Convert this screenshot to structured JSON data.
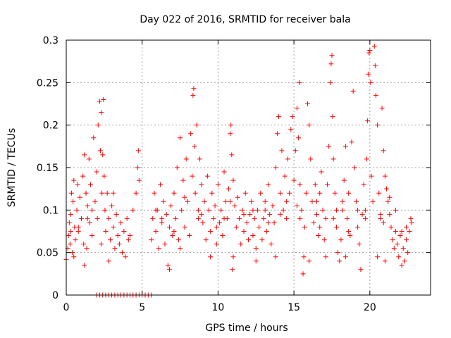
{
  "chart_data": {
    "type": "scatter",
    "title": "Day 022 of 2016, SRMTID for receiver bala",
    "xlabel": "GPS time / hours",
    "ylabel": "SRMTID / TECUs",
    "xlim": [
      0,
      24
    ],
    "ylim": [
      0,
      0.3
    ],
    "grid": true,
    "legend": "none",
    "marker": "plus",
    "color": "#ff0000",
    "x_ticks": [
      0,
      5,
      10,
      15,
      20
    ],
    "x_tick_labels": [
      "0",
      "5",
      "10",
      "15",
      "20"
    ],
    "y_ticks": [
      0,
      0.05,
      0.1,
      0.15,
      0.2,
      0.25,
      0.3
    ],
    "y_tick_labels": [
      "0",
      "0.05",
      "0.1",
      "0.15",
      "0.2",
      "0.25",
      "0.3"
    ],
    "series": [
      {
        "name": "SRMTID",
        "points": [
          [
            0.0,
            0.042
          ],
          [
            0.1,
            0.055
          ],
          [
            0.15,
            0.07
          ],
          [
            0.2,
            0.085
          ],
          [
            0.25,
            0.06
          ],
          [
            0.3,
            0.095
          ],
          [
            0.35,
            0.12
          ],
          [
            0.4,
            0.05
          ],
          [
            0.45,
            0.11
          ],
          [
            0.5,
            0.135
          ],
          [
            0.55,
            0.08
          ],
          [
            0.6,
            0.065
          ],
          [
            0.7,
            0.1
          ],
          [
            0.75,
            0.13
          ],
          [
            0.8,
            0.075
          ],
          [
            0.9,
            0.115
          ],
          [
            1.0,
            0.09
          ],
          [
            1.1,
            0.14
          ],
          [
            1.15,
            0.06
          ],
          [
            1.2,
            0.165
          ],
          [
            1.3,
            0.12
          ],
          [
            1.35,
            0.055
          ],
          [
            1.4,
            0.105
          ],
          [
            1.5,
            0.16
          ],
          [
            1.55,
            0.085
          ],
          [
            1.6,
            0.13
          ],
          [
            1.7,
            0.07
          ],
          [
            1.8,
            0.185
          ],
          [
            1.9,
            0.11
          ],
          [
            2.0,
            0.145
          ],
          [
            2.05,
            0.09
          ],
          [
            2.1,
            0.2
          ],
          [
            2.2,
            0.228
          ],
          [
            2.25,
            0.17
          ],
          [
            2.3,
            0.215
          ],
          [
            2.35,
            0.12
          ],
          [
            2.4,
            0.165
          ],
          [
            2.45,
            0.23
          ],
          [
            2.5,
            0.14
          ],
          [
            2.55,
            0.1
          ],
          [
            2.6,
            0.075
          ],
          [
            2.7,
            0.12
          ],
          [
            2.8,
            0.09
          ],
          [
            2.9,
            0.065
          ],
          [
            3.0,
            0.105
          ],
          [
            3.1,
            0.08
          ],
          [
            3.2,
            0.055
          ],
          [
            3.3,
            0.095
          ],
          [
            3.4,
            0.07
          ],
          [
            3.5,
            0.06
          ],
          [
            3.6,
            0.085
          ],
          [
            3.7,
            0.05
          ],
          [
            3.8,
            0.075
          ],
          [
            4.0,
            0.09
          ],
          [
            4.2,
            0.07
          ],
          [
            4.4,
            0.1
          ],
          [
            4.6,
            0.12
          ],
          [
            4.7,
            0.15
          ],
          [
            4.75,
            0.17
          ],
          [
            4.8,
            0.135
          ],
          [
            2.0,
            0.0
          ],
          [
            2.2,
            0.0
          ],
          [
            2.4,
            0.0
          ],
          [
            2.6,
            0.0
          ],
          [
            2.8,
            0.0
          ],
          [
            3.0,
            0.0
          ],
          [
            3.2,
            0.0
          ],
          [
            3.4,
            0.0
          ],
          [
            3.6,
            0.0
          ],
          [
            3.8,
            0.0
          ],
          [
            4.0,
            0.0
          ],
          [
            4.2,
            0.0
          ],
          [
            4.4,
            0.0
          ],
          [
            4.6,
            0.0
          ],
          [
            4.8,
            0.0
          ],
          [
            5.0,
            0.0
          ],
          [
            5.2,
            0.0
          ],
          [
            5.4,
            0.0
          ],
          [
            5.6,
            0.0
          ],
          [
            5.6,
            0.065
          ],
          [
            5.7,
            0.09
          ],
          [
            5.8,
            0.12
          ],
          [
            5.9,
            0.075
          ],
          [
            6.0,
            0.1
          ],
          [
            6.1,
            0.055
          ],
          [
            6.2,
            0.13
          ],
          [
            6.3,
            0.085
          ],
          [
            6.4,
            0.11
          ],
          [
            6.5,
            0.06
          ],
          [
            6.6,
            0.095
          ],
          [
            6.7,
            0.035
          ],
          [
            6.8,
            0.08
          ],
          [
            6.9,
            0.105
          ],
          [
            7.0,
            0.07
          ],
          [
            7.1,
            0.12
          ],
          [
            7.2,
            0.09
          ],
          [
            7.3,
            0.15
          ],
          [
            7.4,
            0.065
          ],
          [
            7.5,
            0.185
          ],
          [
            7.6,
            0.1
          ],
          [
            7.7,
            0.135
          ],
          [
            7.8,
            0.08
          ],
          [
            7.9,
            0.16
          ],
          [
            8.0,
            0.11
          ],
          [
            8.1,
            0.07
          ],
          [
            8.2,
            0.19
          ],
          [
            8.3,
            0.14
          ],
          [
            8.35,
            0.235
          ],
          [
            8.4,
            0.243
          ],
          [
            8.45,
            0.175
          ],
          [
            8.5,
            0.12
          ],
          [
            8.6,
            0.2
          ],
          [
            8.7,
            0.09
          ],
          [
            8.8,
            0.16
          ],
          [
            8.9,
            0.13
          ],
          [
            9.0,
            0.085
          ],
          [
            9.1,
            0.11
          ],
          [
            9.2,
            0.065
          ],
          [
            9.3,
            0.14
          ],
          [
            9.4,
            0.1
          ],
          [
            9.5,
            0.075
          ],
          [
            9.6,
            0.12
          ],
          [
            9.7,
            0.09
          ],
          [
            9.8,
            0.105
          ],
          [
            9.9,
            0.06
          ],
          [
            10.0,
            0.13
          ],
          [
            10.1,
            0.085
          ],
          [
            10.2,
            0.1
          ],
          [
            10.3,
            0.07
          ],
          [
            10.4,
            0.145
          ],
          [
            10.5,
            0.11
          ],
          [
            10.6,
            0.09
          ],
          [
            10.7,
            0.125
          ],
          [
            10.8,
            0.19
          ],
          [
            10.85,
            0.2
          ],
          [
            10.9,
            0.165
          ],
          [
            10.95,
            0.03
          ],
          [
            11.0,
            0.135
          ],
          [
            11.1,
            0.105
          ],
          [
            11.2,
            0.08
          ],
          [
            11.3,
            0.115
          ],
          [
            11.4,
            0.09
          ],
          [
            11.5,
            0.06
          ],
          [
            11.6,
            0.1
          ],
          [
            11.7,
            0.075
          ],
          [
            11.8,
            0.12
          ],
          [
            11.9,
            0.085
          ],
          [
            12.0,
            0.065
          ],
          [
            12.1,
            0.095
          ],
          [
            12.2,
            0.11
          ],
          [
            12.3,
            0.07
          ],
          [
            12.4,
            0.09
          ],
          [
            12.5,
            0.055
          ],
          [
            12.6,
            0.1
          ],
          [
            12.7,
            0.08
          ],
          [
            12.8,
            0.12
          ],
          [
            12.9,
            0.065
          ],
          [
            13.0,
            0.09
          ],
          [
            13.1,
            0.11
          ],
          [
            13.2,
            0.075
          ],
          [
            13.3,
            0.13
          ],
          [
            13.4,
            0.095
          ],
          [
            13.5,
            0.06
          ],
          [
            13.6,
            0.105
          ],
          [
            13.7,
            0.085
          ],
          [
            13.8,
            0.15
          ],
          [
            13.9,
            0.19
          ],
          [
            14.0,
            0.21
          ],
          [
            14.1,
            0.12
          ],
          [
            14.2,
            0.17
          ],
          [
            14.3,
            0.1
          ],
          [
            14.4,
            0.14
          ],
          [
            14.5,
            0.09
          ],
          [
            14.6,
            0.16
          ],
          [
            14.7,
            0.12
          ],
          [
            14.8,
            0.195
          ],
          [
            14.9,
            0.21
          ],
          [
            15.0,
            0.135
          ],
          [
            15.1,
            0.17
          ],
          [
            15.2,
            0.22
          ],
          [
            15.3,
            0.185
          ],
          [
            15.35,
            0.25
          ],
          [
            15.4,
            0.13
          ],
          [
            15.5,
            0.1
          ],
          [
            15.6,
            0.025
          ],
          [
            15.65,
            0.045
          ],
          [
            15.7,
            0.08
          ],
          [
            15.8,
            0.12
          ],
          [
            15.9,
            0.225
          ],
          [
            16.0,
            0.2
          ],
          [
            16.1,
            0.16
          ],
          [
            16.2,
            0.11
          ],
          [
            16.3,
            0.085
          ],
          [
            16.4,
            0.13
          ],
          [
            16.5,
            0.095
          ],
          [
            16.6,
            0.07
          ],
          [
            16.7,
            0.12
          ],
          [
            16.8,
            0.145
          ],
          [
            16.9,
            0.1
          ],
          [
            17.0,
            0.065
          ],
          [
            17.1,
            0.09
          ],
          [
            17.2,
            0.13
          ],
          [
            17.3,
            0.175
          ],
          [
            17.4,
            0.25
          ],
          [
            17.45,
            0.272
          ],
          [
            17.5,
            0.282
          ],
          [
            17.55,
            0.21
          ],
          [
            17.6,
            0.16
          ],
          [
            17.7,
            0.12
          ],
          [
            17.8,
            0.08
          ],
          [
            17.9,
            0.05
          ],
          [
            18.0,
            0.04
          ],
          [
            18.1,
            0.065
          ],
          [
            18.2,
            0.1
          ],
          [
            18.3,
            0.135
          ],
          [
            18.4,
            0.175
          ],
          [
            18.5,
            0.09
          ],
          [
            18.6,
            0.12
          ],
          [
            18.7,
            0.07
          ],
          [
            18.8,
            0.18
          ],
          [
            18.9,
            0.24
          ],
          [
            19.0,
            0.15
          ],
          [
            19.1,
            0.11
          ],
          [
            19.2,
            0.08
          ],
          [
            19.3,
            0.06
          ],
          [
            19.4,
            0.03
          ],
          [
            19.5,
            0.095
          ],
          [
            19.6,
            0.13
          ],
          [
            19.7,
            0.1
          ],
          [
            19.8,
            0.16
          ],
          [
            19.85,
            0.205
          ],
          [
            19.9,
            0.26
          ],
          [
            19.95,
            0.285
          ],
          [
            20.0,
            0.288
          ],
          [
            20.05,
            0.25
          ],
          [
            20.1,
            0.14
          ],
          [
            20.2,
            0.11
          ],
          [
            20.3,
            0.293
          ],
          [
            20.35,
            0.27
          ],
          [
            20.4,
            0.235
          ],
          [
            20.5,
            0.2
          ],
          [
            20.6,
            0.12
          ],
          [
            20.7,
            0.09
          ],
          [
            20.8,
            0.22
          ],
          [
            20.9,
            0.17
          ],
          [
            21.0,
            0.14
          ],
          [
            21.1,
            0.125
          ],
          [
            21.2,
            0.11
          ],
          [
            21.3,
            0.095
          ],
          [
            21.4,
            0.08
          ],
          [
            21.5,
            0.065
          ],
          [
            21.6,
            0.055
          ],
          [
            21.7,
            0.075
          ],
          [
            21.8,
            0.06
          ],
          [
            21.9,
            0.045
          ],
          [
            22.0,
            0.07
          ],
          [
            22.1,
            0.035
          ],
          [
            22.2,
            0.055
          ],
          [
            22.3,
            0.04
          ],
          [
            22.4,
            0.065
          ],
          [
            22.5,
            0.05
          ],
          [
            22.6,
            0.075
          ],
          [
            22.7,
            0.09
          ],
          [
            22.75,
            0.085
          ],
          [
            0.5,
            0.045
          ],
          [
            1.2,
            0.035
          ],
          [
            2.8,
            0.04
          ],
          [
            3.9,
            0.045
          ],
          [
            6.8,
            0.03
          ],
          [
            7.5,
            0.055
          ],
          [
            9.5,
            0.045
          ],
          [
            11.0,
            0.045
          ],
          [
            12.5,
            0.04
          ],
          [
            13.8,
            0.045
          ],
          [
            16.0,
            0.04
          ],
          [
            17.1,
            0.045
          ],
          [
            18.4,
            0.045
          ],
          [
            20.5,
            0.045
          ],
          [
            21.0,
            0.04
          ],
          [
            0.8,
            0.08
          ],
          [
            1.7,
            0.1
          ],
          [
            2.3,
            0.06
          ],
          [
            3.1,
            0.12
          ],
          [
            4.1,
            0.065
          ],
          [
            6.3,
            0.09
          ],
          [
            7.1,
            0.075
          ],
          [
            8.7,
            0.1
          ],
          [
            9.9,
            0.08
          ],
          [
            10.4,
            0.09
          ],
          [
            12.3,
            0.1
          ],
          [
            13.3,
            0.085
          ],
          [
            14.5,
            0.11
          ],
          [
            15.4,
            0.09
          ],
          [
            16.7,
            0.08
          ],
          [
            17.8,
            0.1
          ],
          [
            18.6,
            0.075
          ],
          [
            19.7,
            0.09
          ],
          [
            20.9,
            0.085
          ],
          [
            21.7,
            0.1
          ],
          [
            22.4,
            0.08
          ],
          [
            0.3,
            0.075
          ],
          [
            1.4,
            0.09
          ],
          [
            5.9,
            0.1
          ],
          [
            7.8,
            0.115
          ],
          [
            8.9,
            0.095
          ],
          [
            10.8,
            0.11
          ],
          [
            11.7,
            0.095
          ],
          [
            13.1,
            0.1
          ],
          [
            14.1,
            0.095
          ],
          [
            15.2,
            0.105
          ],
          [
            16.5,
            0.11
          ],
          [
            17.6,
            0.09
          ],
          [
            18.2,
            0.11
          ],
          [
            19.2,
            0.1
          ],
          [
            20.7,
            0.095
          ],
          [
            21.3,
            0.115
          ],
          [
            22.1,
            0.075
          ]
        ]
      }
    ]
  }
}
